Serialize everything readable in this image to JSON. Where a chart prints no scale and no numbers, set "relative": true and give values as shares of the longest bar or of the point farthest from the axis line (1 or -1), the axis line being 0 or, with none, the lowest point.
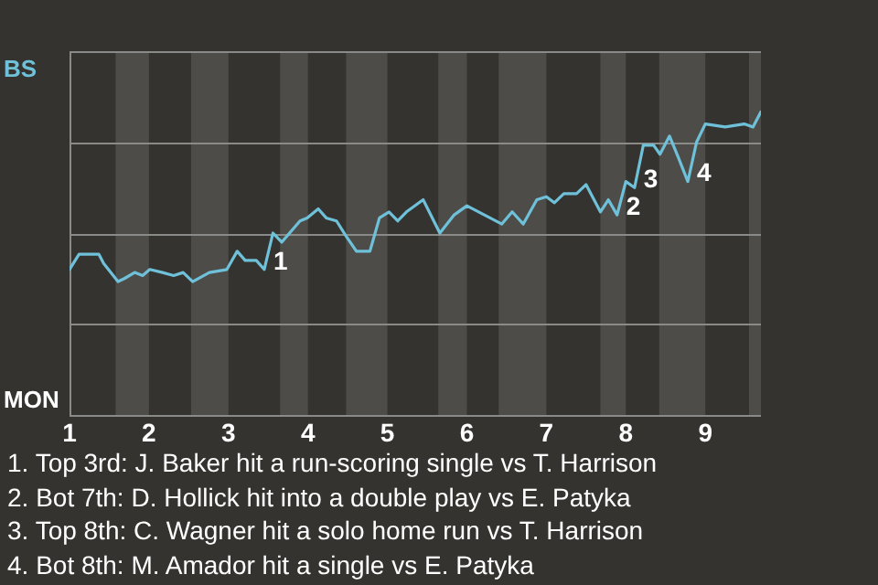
{
  "chart_data": {
    "type": "line",
    "relative": true,
    "xlim": [
      1,
      9.7
    ],
    "xticks": [
      1,
      2,
      3,
      4,
      5,
      6,
      7,
      8,
      9
    ],
    "grid": "y",
    "legend": false,
    "tick_labels": "x",
    "marker": "none",
    "line_style": "solid",
    "bands": [
      {
        "axis": "x",
        "from": 1.58,
        "to": 2.0,
        "color": "#4d4c49"
      },
      {
        "axis": "x",
        "from": 2.53,
        "to": 3.0,
        "color": "#4d4c49"
      },
      {
        "axis": "x",
        "from": 3.65,
        "to": 4.0,
        "color": "#4d4c49"
      },
      {
        "axis": "x",
        "from": 4.48,
        "to": 5.0,
        "color": "#4d4c49"
      },
      {
        "axis": "x",
        "from": 5.64,
        "to": 6.0,
        "color": "#4d4c49"
      },
      {
        "axis": "x",
        "from": 6.4,
        "to": 7.0,
        "color": "#4d4c49"
      },
      {
        "axis": "x",
        "from": 7.68,
        "to": 8.0,
        "color": "#4d4c49"
      },
      {
        "axis": "x",
        "from": 8.42,
        "to": 9.0,
        "color": "#4d4c49"
      },
      {
        "axis": "x",
        "from": 9.55,
        "to": 9.7,
        "color": "#4d4c49"
      }
    ],
    "x": [
      1.0,
      1.12,
      1.37,
      1.43,
      1.61,
      1.69,
      1.82,
      1.92,
      2.01,
      2.17,
      2.31,
      2.43,
      2.55,
      2.76,
      2.98,
      3.11,
      3.21,
      3.35,
      3.45,
      3.56,
      3.67,
      3.9,
      3.99,
      4.13,
      4.23,
      4.36,
      4.48,
      4.61,
      4.78,
      4.9,
      5.02,
      5.13,
      5.24,
      5.45,
      5.66,
      5.84,
      6.0,
      6.22,
      6.44,
      6.57,
      6.71,
      6.88,
      7.0,
      7.1,
      7.22,
      7.38,
      7.5,
      7.68,
      7.78,
      7.89,
      8.0,
      8.11,
      8.22,
      8.35,
      8.43,
      8.55,
      8.66,
      8.78,
      8.89,
      9.0,
      9.25,
      9.49,
      9.6,
      9.7
    ],
    "series": [
      {
        "color": "#6ec1d8",
        "values": [
          0.48,
          0.53,
          0.53,
          0.5,
          0.44,
          0.45,
          0.47,
          0.46,
          0.48,
          0.47,
          0.46,
          0.47,
          0.44,
          0.47,
          0.48,
          0.54,
          0.51,
          0.51,
          0.48,
          0.6,
          0.57,
          0.64,
          0.65,
          0.68,
          0.65,
          0.64,
          0.59,
          0.54,
          0.54,
          0.65,
          0.67,
          0.64,
          0.67,
          0.71,
          0.6,
          0.66,
          0.69,
          0.66,
          0.63,
          0.67,
          0.63,
          0.71,
          0.72,
          0.7,
          0.73,
          0.73,
          0.76,
          0.67,
          0.71,
          0.66,
          0.77,
          0.75,
          0.89,
          0.89,
          0.86,
          0.92,
          0.85,
          0.77,
          0.9,
          0.96,
          0.95,
          0.96,
          0.95,
          1
        ]
      }
    ],
    "annotations": [
      {
        "text": "1",
        "x": 3.45,
        "y": 0.48
      },
      {
        "text": "2",
        "x": 7.89,
        "y": 0.66
      },
      {
        "text": "3",
        "x": 8.11,
        "y": 0.75
      },
      {
        "text": "4",
        "x": 8.78,
        "y": 0.77
      },
      "BS",
      "MON",
      "1. Top 3rd: J. Baker hit a run-scoring single vs T. Harrison",
      "2. Bot 7th: D. Hollick hit into a double play vs E. Patyka",
      "3. Top 8th: C. Wagner hit a solo home run vs T. Harrison",
      "4. Bot 8th: M. Amador hit a single vs E. Patyka"
    ]
  }
}
